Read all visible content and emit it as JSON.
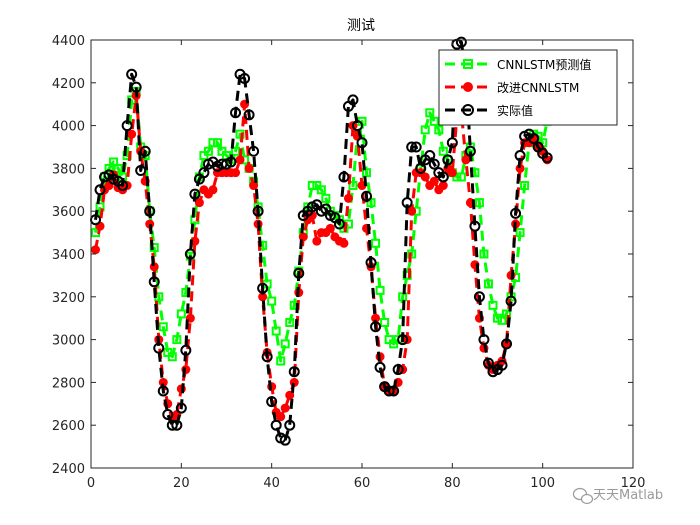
{
  "chart_data": {
    "type": "line",
    "title": "测试",
    "xlabel": "",
    "ylabel": "",
    "xlim": [
      0,
      120
    ],
    "ylim": [
      2400,
      4400
    ],
    "xticks": [
      0,
      20,
      40,
      60,
      80,
      100,
      120
    ],
    "yticks": [
      2400,
      2600,
      2800,
      3000,
      3200,
      3400,
      3600,
      3800,
      4000,
      4200,
      4400
    ],
    "grid": false,
    "legend_position": "top-right",
    "x": [
      1,
      2,
      3,
      4,
      5,
      6,
      7,
      8,
      9,
      10,
      11,
      12,
      13,
      14,
      15,
      16,
      17,
      18,
      19,
      20,
      21,
      22,
      23,
      24,
      25,
      26,
      27,
      28,
      29,
      30,
      31,
      32,
      33,
      34,
      35,
      36,
      37,
      38,
      39,
      40,
      41,
      42,
      43,
      44,
      45,
      46,
      47,
      48,
      49,
      50,
      51,
      52,
      53,
      54,
      55,
      56,
      57,
      58,
      59,
      60,
      61,
      62,
      63,
      64,
      65,
      66,
      67,
      68,
      69,
      70,
      71,
      72,
      73,
      74,
      75,
      76,
      77,
      78,
      79,
      80,
      81,
      82,
      83,
      84,
      85,
      86,
      87,
      88,
      89,
      90,
      91,
      92,
      93,
      94,
      95,
      96,
      97,
      98,
      99,
      100,
      101
    ],
    "series": [
      {
        "name": "CNNLSTM预测值",
        "color": "#00ff00",
        "marker": "square",
        "values": [
          3500,
          3620,
          3760,
          3800,
          3830,
          3800,
          3760,
          3860,
          4120,
          4160,
          3900,
          3860,
          3600,
          3430,
          3200,
          3060,
          2940,
          2920,
          3000,
          3120,
          3220,
          3390,
          3560,
          3760,
          3860,
          3880,
          3920,
          3920,
          3880,
          3860,
          3840,
          3880,
          3960,
          3840,
          3800,
          3740,
          3620,
          3440,
          3260,
          3180,
          3040,
          2900,
          2980,
          3080,
          3160,
          3320,
          3500,
          3620,
          3720,
          3720,
          3700,
          3660,
          3600,
          3580,
          3560,
          3520,
          3540,
          3720,
          3960,
          4020,
          3780,
          3640,
          3450,
          3230,
          3080,
          3000,
          2980,
          3000,
          3200,
          3300,
          3400,
          3600,
          3800,
          3980,
          4060,
          4020,
          3980,
          3880,
          3840,
          3780,
          3760,
          3760,
          3860,
          3900,
          3780,
          3640,
          3400,
          3260,
          3160,
          3100,
          3090,
          3120,
          3200,
          3290,
          3500,
          3720,
          3920,
          3960,
          3950,
          3920,
          4020
        ]
      },
      {
        "name": "改进CNNLSTM",
        "color": "#ff0000",
        "marker": "circle",
        "values": [
          3420,
          3530,
          3700,
          3720,
          3770,
          3710,
          3700,
          3720,
          3960,
          4140,
          3880,
          3740,
          3540,
          3340,
          3000,
          2800,
          2700,
          2630,
          2650,
          2770,
          2860,
          3100,
          3460,
          3640,
          3700,
          3680,
          3700,
          3780,
          3780,
          3780,
          3780,
          3780,
          3840,
          4100,
          3800,
          3720,
          3540,
          3200,
          2940,
          2780,
          2660,
          2640,
          2680,
          2740,
          2800,
          3220,
          3480,
          3560,
          3580,
          3460,
          3500,
          3500,
          3520,
          3480,
          3460,
          3450,
          3660,
          4000,
          3950,
          3720,
          3520,
          3340,
          3100,
          2920,
          2780,
          2760,
          2760,
          2800,
          2860,
          3000,
          3600,
          3780,
          3780,
          3760,
          3720,
          3740,
          3700,
          3720,
          3800,
          3780,
          4040,
          4060,
          3840,
          3640,
          3350,
          3100,
          2960,
          2880,
          2860,
          2880,
          2900,
          2980,
          3300,
          3540,
          3800,
          3920,
          3920,
          3940,
          3900,
          3880,
          3840
        ]
      },
      {
        "name": "实际值",
        "color": "#000000",
        "marker": "circle-open",
        "values": [
          3560,
          3700,
          3760,
          3770,
          3750,
          3740,
          3720,
          4000,
          4240,
          4180,
          3790,
          3880,
          3600,
          3270,
          2960,
          2760,
          2650,
          2600,
          2600,
          2680,
          2950,
          3400,
          3680,
          3750,
          3780,
          3820,
          3830,
          3810,
          3820,
          3820,
          3830,
          4060,
          4240,
          4220,
          4050,
          3880,
          3600,
          3240,
          2920,
          2710,
          2600,
          2540,
          2530,
          2600,
          2850,
          3310,
          3580,
          3600,
          3620,
          3630,
          3600,
          3610,
          3580,
          3570,
          3540,
          3760,
          4090,
          4120,
          4000,
          3920,
          3670,
          3360,
          3060,
          2870,
          2780,
          2760,
          2760,
          2860,
          3000,
          3640,
          3900,
          3900,
          3800,
          3840,
          3860,
          3820,
          3780,
          3760,
          3840,
          3920,
          4380,
          4390,
          4240,
          3880,
          3530,
          3200,
          3000,
          2890,
          2850,
          2860,
          2880,
          2980,
          3180,
          3590,
          3860,
          3950,
          3960,
          3940,
          3900,
          3870,
          3850
        ]
      }
    ]
  },
  "watermark": {
    "text": "天天Matlab",
    "icon": "wechat-bubble-icon"
  }
}
